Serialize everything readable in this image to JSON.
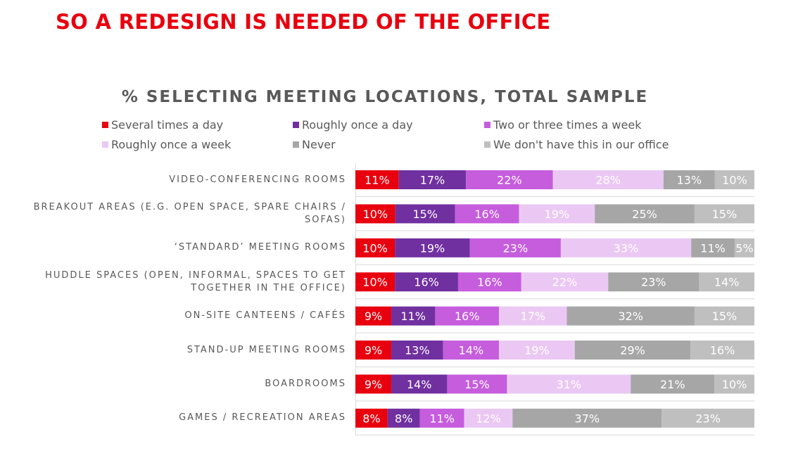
{
  "slide": {
    "headline": "SO A REDESIGN IS NEEDED OF THE OFFICE"
  },
  "chart_data": {
    "type": "bar",
    "orientation": "horizontal",
    "stacked": true,
    "title": "% SELECTING MEETING LOCATIONS, TOTAL SAMPLE",
    "legend_position": "top",
    "categories": [
      "VIDEO-CONFERENCING ROOMS",
      "BREAKOUT AREAS (E.G. OPEN SPACE, SPARE CHAIRS / SOFAS)",
      "‘STANDARD’ MEETING ROOMS",
      "HUDDLE SPACES (OPEN, INFORMAL, SPACES TO GET TOGETHER IN THE OFFICE)",
      "ON-SITE CANTEENS / CAFÉS",
      "STAND-UP MEETING ROOMS",
      "BOARDROOMS",
      "GAMES / RECREATION AREAS"
    ],
    "series": [
      {
        "name": "Several times a day",
        "color": "#e8000e",
        "label_color": "#ffffff",
        "values": [
          11,
          10,
          10,
          10,
          9,
          9,
          9,
          8
        ]
      },
      {
        "name": "Roughly once a day",
        "color": "#7030a0",
        "label_color": "#ffffff",
        "values": [
          17,
          15,
          19,
          16,
          11,
          13,
          14,
          8
        ]
      },
      {
        "name": "Two or three times a week",
        "color": "#c55ddd",
        "label_color": "#ffffff",
        "values": [
          22,
          16,
          23,
          16,
          16,
          14,
          15,
          11
        ]
      },
      {
        "name": "Roughly once a week",
        "color": "#ebc8f3",
        "label_color": "#ffffff",
        "values": [
          28,
          19,
          33,
          22,
          17,
          19,
          31,
          12
        ]
      },
      {
        "name": "Never",
        "color": "#a6a6a6",
        "label_color": "#ffffff",
        "values": [
          13,
          25,
          11,
          23,
          32,
          29,
          21,
          37
        ]
      },
      {
        "name": "We don't have this in our office",
        "color": "#bfbfbf",
        "label_color": "#ffffff",
        "values": [
          10,
          15,
          5,
          14,
          15,
          16,
          10,
          23
        ]
      }
    ],
    "value_suffix": "%",
    "grid": false
  }
}
